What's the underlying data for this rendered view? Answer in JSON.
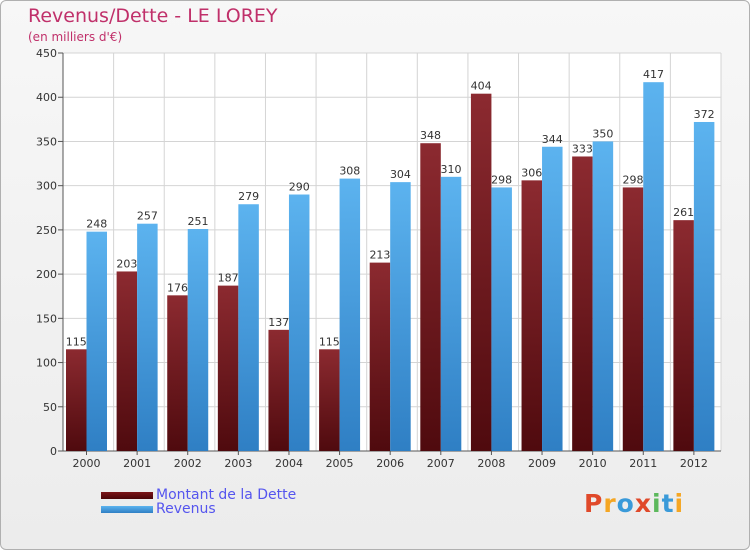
{
  "chart_data": {
    "type": "bar",
    "title": "Revenus/Dette - LE LOREY",
    "subtitle": "(en milliers d'€)",
    "categories": [
      "2000",
      "2001",
      "2002",
      "2003",
      "2004",
      "2005",
      "2006",
      "2007",
      "2008",
      "2009",
      "2010",
      "2011",
      "2012"
    ],
    "series": [
      {
        "name": "Montant de la Dette",
        "color": "#7a1a1e",
        "values": [
          115,
          203,
          176,
          187,
          137,
          115,
          213,
          348,
          404,
          306,
          333,
          298,
          261
        ]
      },
      {
        "name": "Revenus",
        "color": "#4fa3e3",
        "values": [
          248,
          257,
          251,
          279,
          290,
          308,
          304,
          310,
          298,
          344,
          350,
          417,
          372
        ]
      }
    ],
    "ylim": [
      0,
      450
    ],
    "yticks": [
      0,
      50,
      100,
      150,
      200,
      250,
      300,
      350,
      400,
      450
    ],
    "grid": true,
    "legend": "bottom-left"
  },
  "logo": {
    "text": "Proxiti",
    "colors": [
      "#e0492a",
      "#f5a623",
      "#3a9ad9",
      "#e0492a",
      "#5cb85c",
      "#3a9ad9",
      "#f5a623"
    ]
  }
}
